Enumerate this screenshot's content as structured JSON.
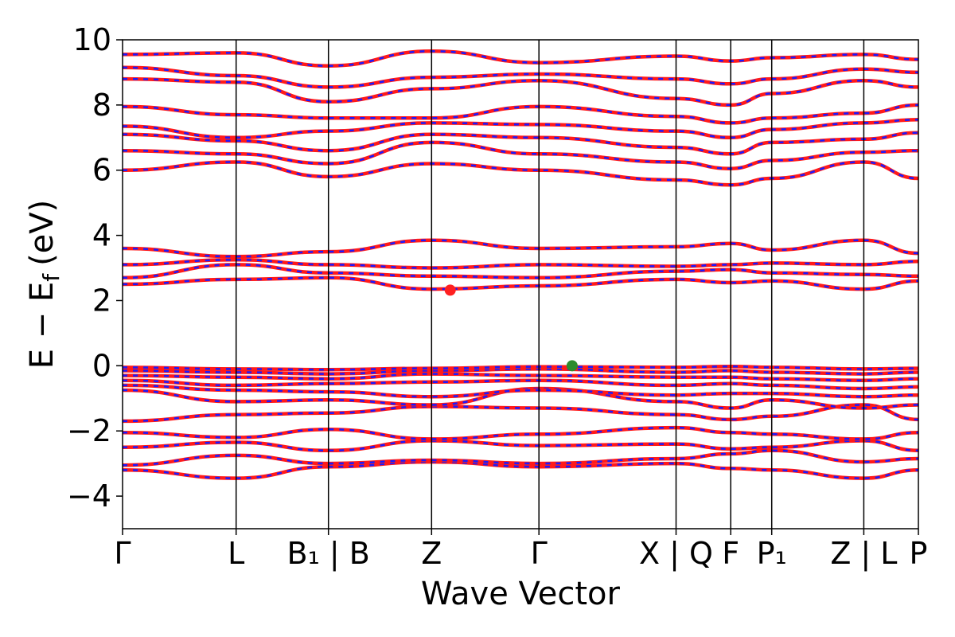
{
  "chart_data": {
    "type": "line",
    "xlabel": "Wave Vector",
    "ylabel": "E − E_f (eV)",
    "ylabel_parts": {
      "main": "E − E",
      "sub": "f",
      "unit": "(eV)"
    },
    "ylim": [
      -5,
      10
    ],
    "yticks": [
      -4,
      -2,
      0,
      2,
      4,
      6,
      8,
      10
    ],
    "ytick_labels": [
      "−4",
      "−2",
      "0",
      "2",
      "4",
      "6",
      "8",
      "10"
    ],
    "xlim": [
      0,
      1
    ],
    "kpoint_positions": [
      0.0,
      0.1427,
      0.2587,
      0.3883,
      0.5232,
      0.6955,
      0.7642,
      0.8157,
      0.9314,
      1.0
    ],
    "kpoint_labels": [
      "Γ",
      "L",
      "B₁ | B",
      "Z",
      "Γ",
      "X | Q",
      "F",
      "P₁",
      "Z | L",
      "P"
    ],
    "grid": false,
    "series": [
      {
        "x": [
          0,
          0.1427,
          0.2587,
          0.3883,
          0.5232,
          0.6955,
          0.7642,
          0.8157,
          0.9314,
          1.0
        ],
        "values": [
          -3.2,
          -3.45,
          -3.1,
          -2.95,
          -3.1,
          -3.0,
          -3.15,
          -3.2,
          -3.45,
          -3.2
        ]
      },
      {
        "x": [
          0,
          0.1427,
          0.2587,
          0.3883,
          0.5232,
          0.6955,
          0.7642,
          0.8157,
          0.9314,
          1.0
        ],
        "values": [
          -3.05,
          -2.75,
          -3.0,
          -2.9,
          -3.0,
          -2.85,
          -2.7,
          -2.6,
          -2.95,
          -2.85
        ]
      },
      {
        "x": [
          0,
          0.1427,
          0.2587,
          0.3883,
          0.5232,
          0.6955,
          0.7642,
          0.8157,
          0.9314,
          1.0
        ],
        "values": [
          -2.5,
          -2.35,
          -2.6,
          -2.3,
          -2.45,
          -2.4,
          -2.55,
          -2.5,
          -2.3,
          -2.6
        ]
      },
      {
        "x": [
          0,
          0.1427,
          0.2587,
          0.3883,
          0.5232,
          0.6955,
          0.7642,
          0.8157,
          0.9314,
          1.0
        ],
        "values": [
          -2.05,
          -2.2,
          -1.95,
          -2.25,
          -2.1,
          -1.9,
          -2.05,
          -2.1,
          -2.25,
          -2.05
        ]
      },
      {
        "x": [
          0,
          0.1427,
          0.2587,
          0.3883,
          0.5232,
          0.6955,
          0.7642,
          0.8157,
          0.9314,
          1.0
        ],
        "values": [
          -1.7,
          -1.5,
          -1.45,
          -1.25,
          -1.3,
          -1.5,
          -1.65,
          -1.55,
          -1.2,
          -1.65
        ]
      },
      {
        "x": [
          0,
          0.1427,
          0.2587,
          0.3883,
          0.5232,
          0.6955,
          0.7642,
          0.8157,
          0.9314,
          1.0
        ],
        "values": [
          -0.75,
          -1.1,
          -1.05,
          -1.2,
          -0.7,
          -1.1,
          -1.3,
          -1.05,
          -1.3,
          -1.2
        ]
      },
      {
        "x": [
          0,
          0.1427,
          0.2587,
          0.3883,
          0.5232,
          0.6955,
          0.7642,
          0.8157,
          0.9314,
          1.0
        ],
        "values": [
          -0.6,
          -0.75,
          -0.8,
          -0.95,
          -0.75,
          -0.9,
          -0.85,
          -0.85,
          -0.95,
          -0.9
        ]
      },
      {
        "x": [
          0,
          0.1427,
          0.2587,
          0.3883,
          0.5232,
          0.6955,
          0.7642,
          0.8157,
          0.9314,
          1.0
        ],
        "values": [
          -0.45,
          -0.6,
          -0.55,
          -0.5,
          -0.45,
          -0.6,
          -0.55,
          -0.6,
          -0.7,
          -0.65
        ]
      },
      {
        "x": [
          0,
          0.1427,
          0.2587,
          0.3883,
          0.5232,
          0.6955,
          0.7642,
          0.8157,
          0.9314,
          1.0
        ],
        "values": [
          -0.3,
          -0.35,
          -0.4,
          -0.25,
          -0.3,
          -0.35,
          -0.35,
          -0.4,
          -0.45,
          -0.4
        ]
      },
      {
        "x": [
          0,
          0.1427,
          0.2587,
          0.3883,
          0.5232,
          0.6955,
          0.7642,
          0.8157,
          0.9314,
          1.0
        ],
        "values": [
          -0.15,
          -0.2,
          -0.25,
          -0.15,
          -0.1,
          -0.2,
          -0.15,
          -0.2,
          -0.25,
          -0.2
        ]
      },
      {
        "x": [
          0,
          0.1427,
          0.2587,
          0.3883,
          0.5232,
          0.6955,
          0.7642,
          0.8157,
          0.9314,
          1.0
        ],
        "values": [
          -0.05,
          -0.1,
          -0.12,
          -0.08,
          -0.03,
          -0.05,
          -0.02,
          -0.05,
          -0.1,
          -0.08
        ]
      },
      {
        "x": [
          0,
          0.1427,
          0.2587,
          0.3883,
          0.5232,
          0.6955,
          0.7642,
          0.8157,
          0.9314,
          1.0
        ],
        "values": [
          2.5,
          2.65,
          2.7,
          2.35,
          2.45,
          2.65,
          2.55,
          2.6,
          2.35,
          2.6
        ]
      },
      {
        "x": [
          0,
          0.1427,
          0.2587,
          0.3883,
          0.5232,
          0.6955,
          0.7642,
          0.8157,
          0.9314,
          1.0
        ],
        "values": [
          2.7,
          3.1,
          2.85,
          2.75,
          2.7,
          2.9,
          2.95,
          2.85,
          2.8,
          2.75
        ]
      },
      {
        "x": [
          0,
          0.1427,
          0.2587,
          0.3883,
          0.5232,
          0.6955,
          0.7642,
          0.8157,
          0.9314,
          1.0
        ],
        "values": [
          3.1,
          3.25,
          3.1,
          3.0,
          3.1,
          3.05,
          3.1,
          3.15,
          3.1,
          3.2
        ]
      },
      {
        "x": [
          0,
          0.1427,
          0.2587,
          0.3883,
          0.5232,
          0.6955,
          0.7642,
          0.8157,
          0.9314,
          1.0
        ],
        "values": [
          3.6,
          3.35,
          3.5,
          3.85,
          3.6,
          3.65,
          3.75,
          3.55,
          3.85,
          3.45
        ]
      },
      {
        "x": [
          0,
          0.1427,
          0.2587,
          0.3883,
          0.5232,
          0.6955,
          0.7642,
          0.8157,
          0.9314,
          1.0
        ],
        "values": [
          6.0,
          6.25,
          5.8,
          6.2,
          6.0,
          5.7,
          5.55,
          5.75,
          6.25,
          5.75
        ]
      },
      {
        "x": [
          0,
          0.1427,
          0.2587,
          0.3883,
          0.5232,
          0.6955,
          0.7642,
          0.8157,
          0.9314,
          1.0
        ],
        "values": [
          6.6,
          6.5,
          6.2,
          6.85,
          6.5,
          6.25,
          6.05,
          6.3,
          6.55,
          6.6
        ]
      },
      {
        "x": [
          0,
          0.1427,
          0.2587,
          0.3883,
          0.5232,
          0.6955,
          0.7642,
          0.8157,
          0.9314,
          1.0
        ],
        "values": [
          7.1,
          6.9,
          6.6,
          7.1,
          7.0,
          6.7,
          6.5,
          6.85,
          6.95,
          7.15
        ]
      },
      {
        "x": [
          0,
          0.1427,
          0.2587,
          0.3883,
          0.5232,
          0.6955,
          0.7642,
          0.8157,
          0.9314,
          1.0
        ],
        "values": [
          7.35,
          7.0,
          7.2,
          7.45,
          7.4,
          7.2,
          7.0,
          7.25,
          7.45,
          7.55
        ]
      },
      {
        "x": [
          0,
          0.1427,
          0.2587,
          0.3883,
          0.5232,
          0.6955,
          0.7642,
          0.8157,
          0.9314,
          1.0
        ],
        "values": [
          7.95,
          7.7,
          7.6,
          7.6,
          7.95,
          7.65,
          7.45,
          7.6,
          7.75,
          8.0
        ]
      },
      {
        "x": [
          0,
          0.1427,
          0.2587,
          0.3883,
          0.5232,
          0.6955,
          0.7642,
          0.8157,
          0.9314,
          1.0
        ],
        "values": [
          8.8,
          8.7,
          8.1,
          8.5,
          8.75,
          8.2,
          8.0,
          8.35,
          8.75,
          8.55
        ]
      },
      {
        "x": [
          0,
          0.1427,
          0.2587,
          0.3883,
          0.5232,
          0.6955,
          0.7642,
          0.8157,
          0.9314,
          1.0
        ],
        "values": [
          9.15,
          8.9,
          8.55,
          8.85,
          8.95,
          8.8,
          8.65,
          8.8,
          9.1,
          9.0
        ]
      },
      {
        "x": [
          0,
          0.1427,
          0.2587,
          0.3883,
          0.5232,
          0.6955,
          0.7642,
          0.8157,
          0.9314,
          1.0
        ],
        "values": [
          9.55,
          9.6,
          9.2,
          9.65,
          9.3,
          9.5,
          9.35,
          9.45,
          9.55,
          9.4
        ]
      }
    ],
    "markers": [
      {
        "x": 0.4117,
        "y": 2.32,
        "color": "#ff2020"
      },
      {
        "x": 0.5649,
        "y": 0.0,
        "color": "#2e8b2e"
      }
    ]
  },
  "colors": {
    "primary_line": "#ff1a1a",
    "secondary_dash": "#1a1aff",
    "axis": "#000000"
  }
}
